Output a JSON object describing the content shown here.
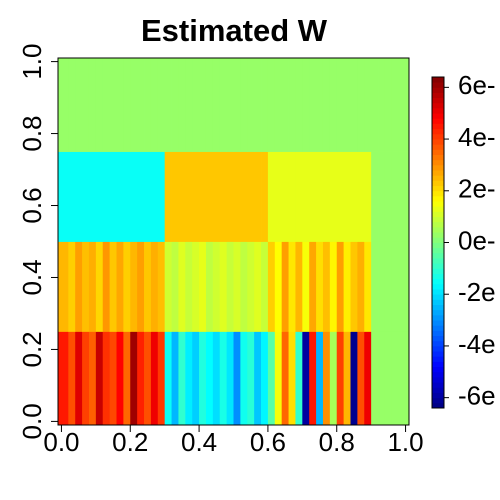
{
  "chart_data": {
    "type": "heatmap",
    "title": "Estimated W",
    "xbins": [
      -0.01,
      0.02,
      0.04,
      0.06,
      0.08,
      0.1,
      0.12,
      0.14,
      0.16,
      0.18,
      0.2,
      0.22,
      0.24,
      0.26,
      0.28,
      0.3,
      0.32,
      0.34,
      0.36,
      0.38,
      0.4,
      0.42,
      0.44,
      0.46,
      0.48,
      0.5,
      0.52,
      0.54,
      0.56,
      0.58,
      0.6,
      0.62,
      0.64,
      0.66,
      0.68,
      0.7,
      0.72,
      0.74,
      0.76,
      0.78,
      0.8,
      0.82,
      0.84,
      0.86,
      0.88,
      0.9,
      0.92,
      0.94,
      0.96,
      0.98,
      1.01
    ],
    "ybins": [
      -0.01,
      0.25,
      0.5,
      0.75,
      1.01
    ],
    "values": [
      [
        4.5,
        3.8,
        5.2,
        4.0,
        3.6,
        5.5,
        4.2,
        3.9,
        4.8,
        3.5,
        6.0,
        4.4,
        3.8,
        5.0,
        4.1,
        -1.5,
        -2.5,
        -1.0,
        -1.8,
        -2.2,
        -1.2,
        -1.6,
        -2.0,
        -1.3,
        -1.9,
        -3.0,
        -1.4,
        -1.1,
        -2.3,
        -1.7,
        -0.5,
        1.5,
        3.5,
        2.0,
        -1.0,
        -6.0,
        4.5,
        -2.5,
        3.0,
        0.5,
        4.0,
        2.5,
        -6.2,
        3.8,
        5.0,
        0.3,
        0.3,
        0.3,
        0.3,
        0.3
      ],
      [
        2.5,
        2.2,
        2.8,
        2.4,
        2.6,
        2.1,
        2.9,
        2.3,
        2.7,
        2.2,
        2.5,
        2.8,
        2.3,
        2.6,
        2.4,
        1.0,
        0.8,
        1.2,
        0.9,
        1.1,
        1.3,
        0.8,
        1.0,
        1.2,
        0.9,
        1.1,
        0.8,
        1.0,
        1.2,
        0.9,
        2.2,
        1.6,
        2.8,
        1.9,
        2.5,
        1.5,
        2.7,
        2.0,
        2.4,
        1.7,
        2.8,
        1.8,
        2.3,
        2.6,
        1.9,
        0.3,
        0.3,
        0.3,
        0.3,
        0.3
      ],
      [
        -1.5,
        -1.5,
        -1.5,
        -1.5,
        -1.5,
        -1.5,
        -1.5,
        -1.5,
        -1.5,
        -1.5,
        -1.5,
        -1.5,
        -1.5,
        -1.5,
        -1.5,
        2.3,
        2.3,
        2.3,
        2.3,
        2.3,
        2.3,
        2.3,
        2.3,
        2.3,
        2.3,
        2.3,
        2.3,
        2.3,
        2.3,
        2.3,
        1.3,
        1.3,
        1.3,
        1.3,
        1.3,
        1.3,
        1.3,
        1.3,
        1.3,
        1.3,
        1.3,
        1.3,
        1.3,
        1.3,
        1.3,
        0.3,
        0.3,
        0.3,
        0.3,
        0.3
      ],
      [
        0.3,
        0.3,
        0.3,
        0.3,
        0.3,
        0.3,
        0.3,
        0.3,
        0.3,
        0.3,
        0.3,
        0.3,
        0.3,
        0.3,
        0.3,
        0.3,
        0.3,
        0.3,
        0.3,
        0.3,
        0.3,
        0.3,
        0.3,
        0.3,
        0.3,
        0.3,
        0.3,
        0.3,
        0.3,
        0.3,
        0.3,
        0.3,
        0.3,
        0.3,
        0.3,
        0.3,
        0.3,
        0.3,
        0.3,
        0.3,
        0.3,
        0.3,
        0.3,
        0.3,
        0.3,
        0.3,
        0.3,
        0.3,
        0.3,
        0.3
      ]
    ],
    "xlim": [
      -0.01,
      1.01
    ],
    "ylim": [
      -0.01,
      1.01
    ],
    "xticks": [
      {
        "value": 0,
        "label": "0.0"
      },
      0.2,
      0.4,
      0.6,
      0.8,
      {
        "value": 1,
        "label": "1.0"
      }
    ],
    "yticks": [
      {
        "value": 0,
        "label": "0.0"
      },
      0.2,
      0.4,
      0.6,
      0.8,
      {
        "value": 1,
        "label": "1.0"
      }
    ],
    "colormap": [
      "#00007F",
      "#0000FF",
      "#007FFF",
      "#00FFFF",
      "#7FFF7F",
      "#FFFF00",
      "#FF7F00",
      "#FF0000",
      "#7F0000"
    ],
    "zlim": [
      -6.4,
      6.4
    ],
    "zticks": [
      {
        "value": 6,
        "label": "6e-"
      },
      {
        "value": 4,
        "label": "4e-"
      },
      {
        "value": 2,
        "label": "2e-"
      },
      {
        "value": 0,
        "label": "0e-"
      },
      {
        "value": -2,
        "label": "-2e"
      },
      {
        "value": -4,
        "label": "-4e"
      },
      {
        "value": -6,
        "label": "-6e"
      }
    ]
  }
}
